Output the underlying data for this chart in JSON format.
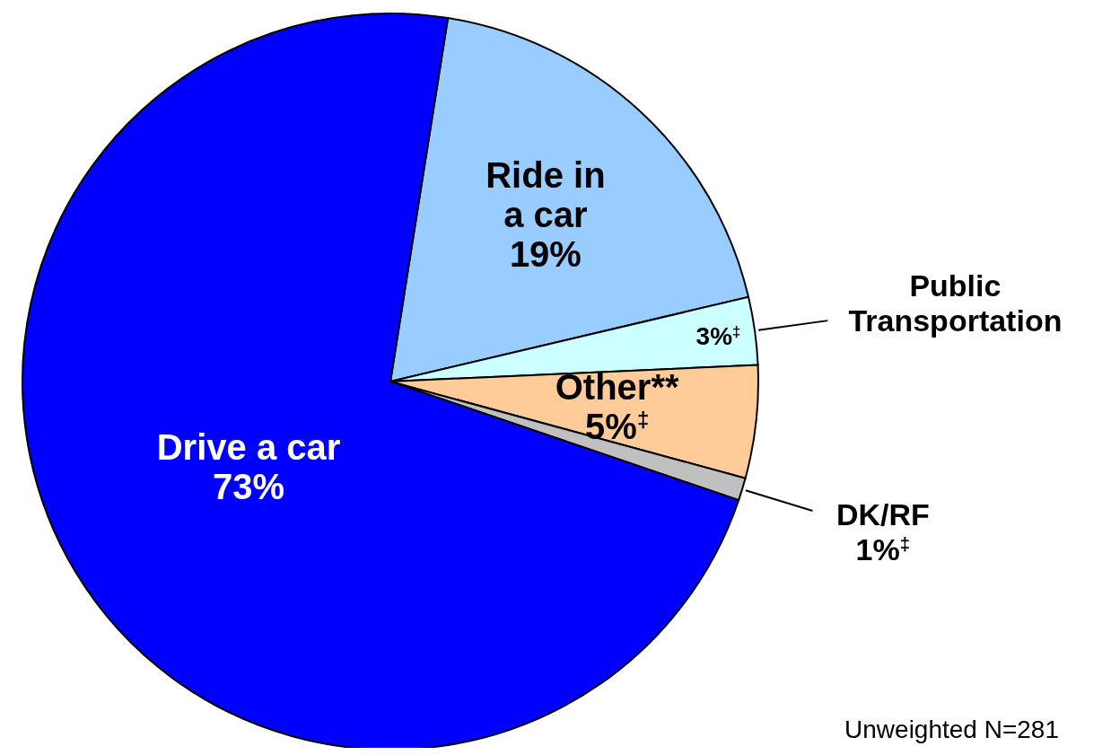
{
  "chart_data": {
    "type": "pie",
    "categories": [
      "Ride in a car",
      "Public Transportation",
      "Other**",
      "DK/RF",
      "Drive a car"
    ],
    "values": [
      19,
      3,
      5,
      1,
      73
    ],
    "value_labels": [
      "19%",
      "3%$^{‡}$",
      "5%$^{‡}$",
      "1%$^{‡}$",
      "73%"
    ],
    "colors": [
      "#99ccff",
      "#ccffff",
      "#ffcc99",
      "#c0c0c0",
      "#0000ff"
    ],
    "annotations": [
      "Unweighted N=281"
    ]
  }
}
